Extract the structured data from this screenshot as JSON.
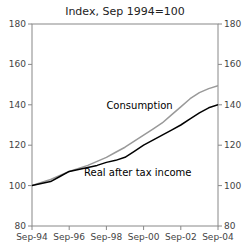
{
  "chart_data": {
    "type": "line",
    "title": "Index, Sep 1994=100",
    "x": [
      0,
      0.5,
      1,
      1.5,
      2,
      2.5,
      3,
      3.5,
      4,
      4.5,
      5,
      5.5,
      6,
      6.5,
      7,
      7.5,
      8,
      8.5,
      9,
      9.5,
      10
    ],
    "series": [
      {
        "color": "#999999",
        "values": [
          100,
          101.5,
          103,
          105,
          107,
          108.5,
          110,
          112,
          114,
          116.5,
          119,
          122,
          125,
          128,
          131,
          135,
          139,
          143,
          146,
          148,
          149.5
        ]
      },
      {
        "color": "#000000",
        "values": [
          100,
          101,
          102,
          104.5,
          107,
          108,
          109,
          110,
          111.5,
          112.5,
          114,
          117,
          120,
          122.5,
          125,
          127.5,
          130,
          133,
          136,
          138.5,
          140
        ]
      }
    ],
    "annotations": [
      {
        "text": "Consumption",
        "x": 4.0,
        "y": 138
      },
      {
        "text": "Real after tax income",
        "x": 2.8,
        "y": 105
      }
    ],
    "xlim": [
      0,
      10
    ],
    "xticks": [
      {
        "value": 0,
        "label": "Sep-94"
      },
      {
        "value": 2,
        "label": "Sep-96"
      },
      {
        "value": 4,
        "label": "Sep-98"
      },
      {
        "value": 6,
        "label": "Sep-00"
      },
      {
        "value": 8,
        "label": "Sep-02"
      },
      {
        "value": 10,
        "label": "Sep-04"
      }
    ],
    "ylim": [
      80,
      180
    ],
    "yticks": [
      80,
      100,
      120,
      140,
      160,
      180
    ],
    "y2lim": [
      80,
      180
    ],
    "y2ticks": [
      80,
      100,
      120,
      140,
      160,
      180
    ],
    "grid": false
  }
}
